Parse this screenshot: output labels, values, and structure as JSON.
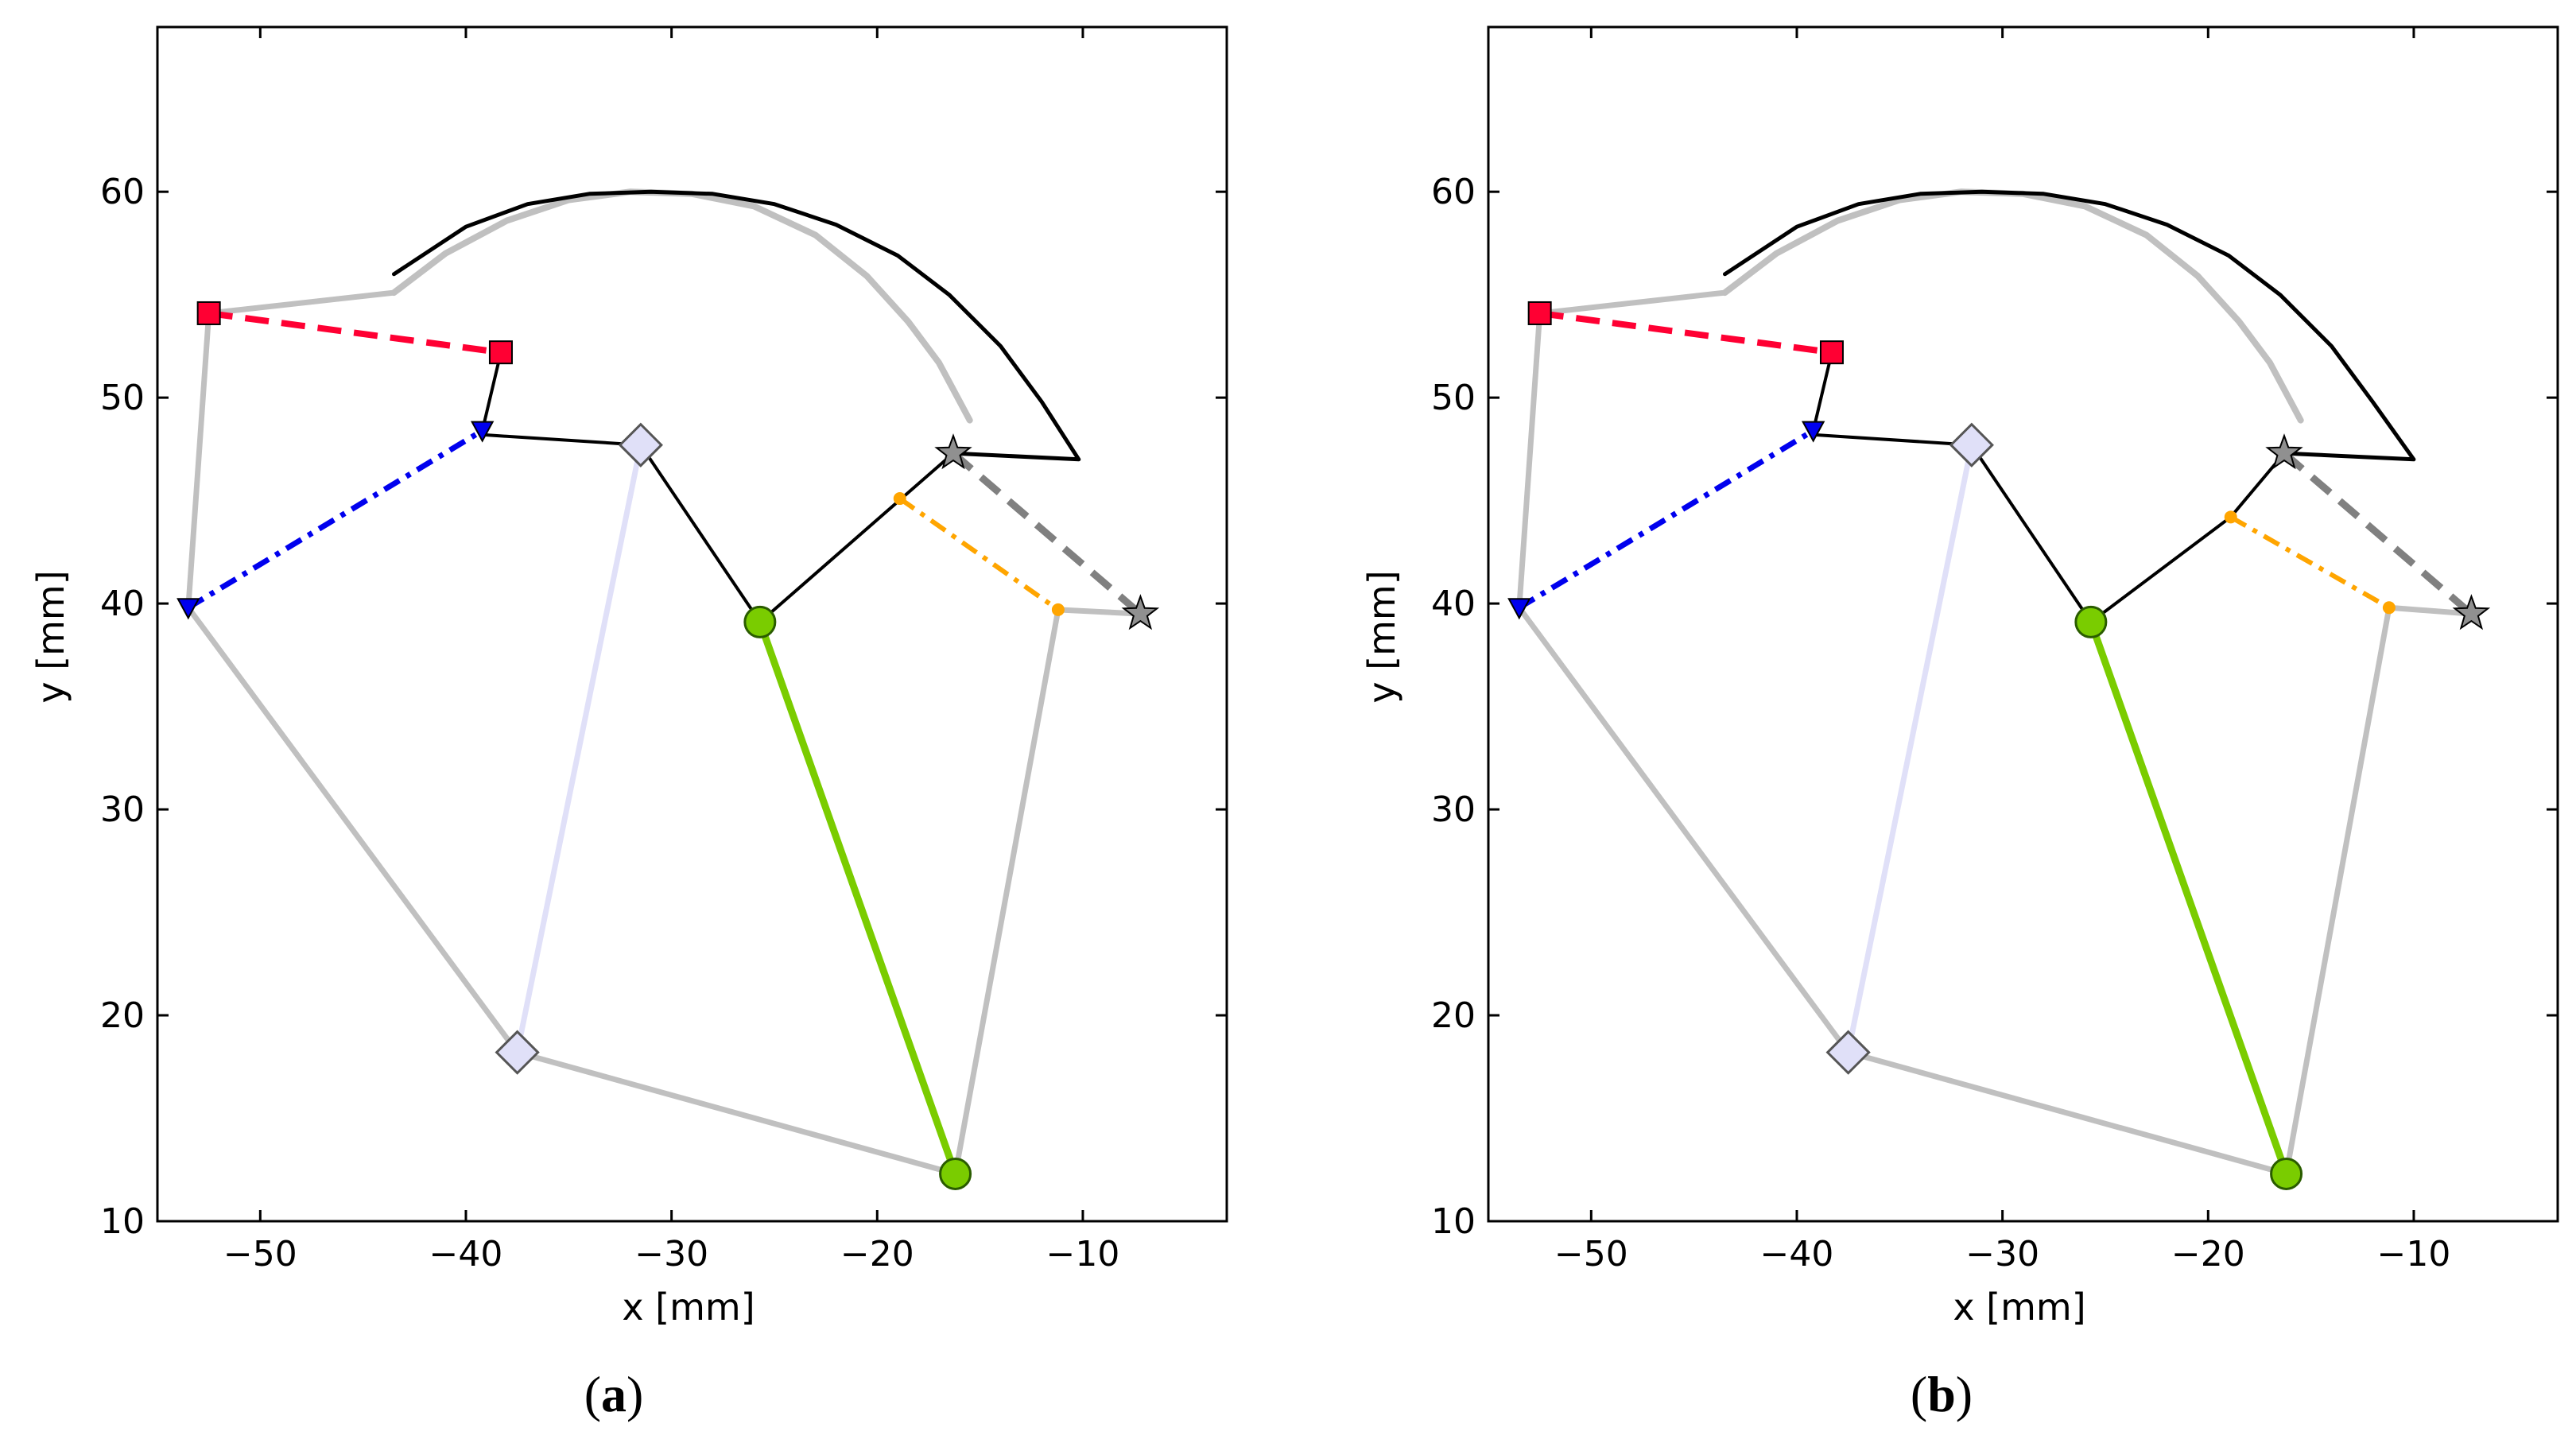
{
  "colors": {
    "frame": "#000000",
    "grey_link": "#c0c0c0",
    "lavender_link": "#e0e0f8",
    "green_link": "#7acc00",
    "black_link": "#000000",
    "red_dashed": "#ff0033",
    "blue_dashdot": "#0000ee",
    "orange_dashdot": "#ffa500",
    "grey_dashed": "#808080",
    "diamond_fill": "#e0e0f8",
    "star_fill": "#909090",
    "green_marker": "#7acc00"
  },
  "chart_data": [
    {
      "type": "line",
      "panel_label_open": "(",
      "panel_label_letter": "a",
      "panel_label_close": ")",
      "xlabel": "x [mm]",
      "ylabel": "y [mm]",
      "xlim": [
        -55,
        -3
      ],
      "ylim": [
        10,
        68
      ],
      "xticks": [
        -50,
        -40,
        -30,
        -20,
        -10
      ],
      "xtick_labels": [
        "−50",
        "−40",
        "−30",
        "−20",
        "−10"
      ],
      "yticks": [
        10,
        20,
        30,
        40,
        50,
        60
      ],
      "ytick_labels": [
        "10",
        "20",
        "30",
        "40",
        "50",
        "60"
      ],
      "series": [
        {
          "name": "grey-arc",
          "style": "solid",
          "color": "grey_link",
          "width": 8,
          "x": [
            -43.5,
            -41,
            -38,
            -35,
            -32,
            -29,
            -26,
            -23,
            -20.5,
            -18.5,
            -17,
            -15.5
          ],
          "y": [
            55.1,
            57,
            58.6,
            59.6,
            60,
            59.9,
            59.3,
            57.9,
            55.9,
            53.7,
            51.7,
            48.9
          ]
        },
        {
          "name": "black-arc",
          "style": "solid",
          "color": "black_link",
          "width": 5,
          "x": [
            -43.5,
            -40,
            -37,
            -34,
            -31,
            -28,
            -25,
            -22,
            -19,
            -16.5,
            -14,
            -12,
            -10.2,
            -16.3
          ],
          "y": [
            56,
            58.3,
            59.4,
            59.9,
            60,
            59.9,
            59.4,
            58.4,
            56.9,
            55,
            52.5,
            49.8,
            47,
            47.3
          ]
        },
        {
          "name": "grey-polyline-left",
          "style": "solid",
          "color": "grey_link",
          "width": 7,
          "x": [
            -43.5,
            -52.5,
            -53.5,
            -37.5,
            -16.2,
            -11.2,
            -7.2
          ],
          "y": [
            55.1,
            54.1,
            39.8,
            18.2,
            12.3,
            39.7,
            39.5
          ]
        },
        {
          "name": "lavender-link",
          "style": "solid",
          "color": "lavender_link",
          "width": 7,
          "x": [
            -31.5,
            -37.5
          ],
          "y": [
            47.7,
            18.2
          ]
        },
        {
          "name": "green-link",
          "style": "solid",
          "color": "green_link",
          "width": 9,
          "x": [
            -25.7,
            -16.2
          ],
          "y": [
            39.1,
            12.3
          ]
        },
        {
          "name": "black-linkage",
          "style": "solid",
          "color": "black_link",
          "width": 4,
          "x": [
            -38.3,
            -39.2,
            -39.2,
            -31.5,
            -25.7,
            -16.3
          ],
          "y": [
            52.2,
            48.4,
            48.2,
            47.7,
            39.1,
            47.3
          ]
        },
        {
          "name": "red-dashed",
          "style": "dashed",
          "color": "red_dashed",
          "width": 8,
          "x": [
            -52.5,
            -38.3
          ],
          "y": [
            54.1,
            52.2
          ]
        },
        {
          "name": "blue-dashdot",
          "style": "dashdot",
          "color": "blue_dashdot",
          "width": 7,
          "x": [
            -53.5,
            -39.2
          ],
          "y": [
            39.8,
            48.4
          ]
        },
        {
          "name": "orange-dashdot",
          "style": "dashdot",
          "color": "orange_dashdot",
          "width": 6,
          "x": [
            -18.9,
            -11.2
          ],
          "y": [
            45.1,
            39.7
          ]
        },
        {
          "name": "grey-dashed",
          "style": "dashed",
          "color": "grey_dashed",
          "width": 9,
          "x": [
            -16.3,
            -7.2
          ],
          "y": [
            47.3,
            39.5
          ]
        }
      ],
      "markers": [
        {
          "name": "red-square-1",
          "shape": "square",
          "color": "red_dashed",
          "x": -52.5,
          "y": 54.1
        },
        {
          "name": "red-square-2",
          "shape": "square",
          "color": "red_dashed",
          "x": -38.3,
          "y": 52.2
        },
        {
          "name": "blue-triangle-1",
          "shape": "triangle",
          "color": "blue_dashdot",
          "x": -39.2,
          "y": 48.4
        },
        {
          "name": "blue-triangle-2",
          "shape": "triangle",
          "color": "blue_dashdot",
          "x": -53.5,
          "y": 39.8
        },
        {
          "name": "diamond-top",
          "shape": "diamond",
          "color": "diamond_fill",
          "x": -31.5,
          "y": 47.7
        },
        {
          "name": "diamond-bottom",
          "shape": "diamond",
          "color": "diamond_fill",
          "x": -37.5,
          "y": 18.2
        },
        {
          "name": "green-circle-top",
          "shape": "circle",
          "color": "green_marker",
          "x": -25.7,
          "y": 39.1
        },
        {
          "name": "green-circle-bottom",
          "shape": "circle",
          "color": "green_marker",
          "x": -16.2,
          "y": 12.3
        },
        {
          "name": "orange-dot-1",
          "shape": "dot",
          "color": "orange_dashdot",
          "x": -18.9,
          "y": 45.1
        },
        {
          "name": "orange-dot-2",
          "shape": "dot",
          "color": "orange_dashdot",
          "x": -11.2,
          "y": 39.7
        },
        {
          "name": "star-1",
          "shape": "star",
          "color": "star_fill",
          "x": -16.3,
          "y": 47.3
        },
        {
          "name": "star-2",
          "shape": "star",
          "color": "star_fill",
          "x": -7.2,
          "y": 39.5
        }
      ]
    },
    {
      "type": "line",
      "panel_label_open": "(",
      "panel_label_letter": "b",
      "panel_label_close": ")",
      "xlabel": "x [mm]",
      "ylabel": "y [mm]",
      "xlim": [
        -55,
        -3
      ],
      "ylim": [
        10,
        68
      ],
      "xticks": [
        -50,
        -40,
        -30,
        -20,
        -10
      ],
      "xtick_labels": [
        "−50",
        "−40",
        "−30",
        "−20",
        "−10"
      ],
      "yticks": [
        10,
        20,
        30,
        40,
        50,
        60
      ],
      "ytick_labels": [
        "10",
        "20",
        "30",
        "40",
        "50",
        "60"
      ],
      "series": [
        {
          "name": "grey-arc",
          "style": "solid",
          "color": "grey_link",
          "width": 8,
          "x": [
            -43.5,
            -41,
            -38,
            -35,
            -32,
            -29,
            -26,
            -23,
            -20.5,
            -18.5,
            -17,
            -15.5
          ],
          "y": [
            55.1,
            57,
            58.6,
            59.6,
            60,
            59.9,
            59.3,
            57.9,
            55.9,
            53.7,
            51.7,
            48.9
          ]
        },
        {
          "name": "black-arc",
          "style": "solid",
          "color": "black_link",
          "width": 5,
          "x": [
            -43.5,
            -40,
            -37,
            -34,
            -31,
            -28,
            -25,
            -22,
            -19,
            -16.5,
            -14,
            -12,
            -10,
            -16.3
          ],
          "y": [
            56,
            58.3,
            59.4,
            59.9,
            60,
            59.9,
            59.4,
            58.4,
            56.9,
            55,
            52.5,
            49.8,
            47,
            47.3
          ]
        },
        {
          "name": "grey-polyline-left",
          "style": "solid",
          "color": "grey_link",
          "width": 7,
          "x": [
            -43.5,
            -52.5,
            -53.5,
            -37.5,
            -16.2,
            -11.2,
            -7.2
          ],
          "y": [
            55.1,
            54.1,
            39.8,
            18.2,
            12.3,
            39.8,
            39.5
          ]
        },
        {
          "name": "lavender-link",
          "style": "solid",
          "color": "lavender_link",
          "width": 7,
          "x": [
            -31.5,
            -37.5
          ],
          "y": [
            47.7,
            18.2
          ]
        },
        {
          "name": "green-link",
          "style": "solid",
          "color": "green_link",
          "width": 9,
          "x": [
            -25.7,
            -16.2
          ],
          "y": [
            39.1,
            12.3
          ]
        },
        {
          "name": "black-linkage",
          "style": "solid",
          "color": "black_link",
          "width": 4,
          "x": [
            -38.3,
            -39.2,
            -39.2,
            -31.5,
            -25.7,
            -18.9,
            -16.3
          ],
          "y": [
            52.2,
            48.4,
            48.2,
            47.7,
            39.1,
            44.2,
            47.3
          ]
        },
        {
          "name": "red-dashed",
          "style": "dashed",
          "color": "red_dashed",
          "width": 8,
          "x": [
            -52.5,
            -38.3
          ],
          "y": [
            54.1,
            52.2
          ]
        },
        {
          "name": "blue-dashdot",
          "style": "dashdot",
          "color": "blue_dashdot",
          "width": 7,
          "x": [
            -53.5,
            -39.2
          ],
          "y": [
            39.8,
            48.4
          ]
        },
        {
          "name": "orange-dashdot",
          "style": "dashdot",
          "color": "orange_dashdot",
          "width": 6,
          "x": [
            -18.9,
            -11.2
          ],
          "y": [
            44.2,
            39.8
          ]
        },
        {
          "name": "grey-dashed",
          "style": "dashed",
          "color": "grey_dashed",
          "width": 9,
          "x": [
            -16.3,
            -7.2
          ],
          "y": [
            47.3,
            39.5
          ]
        }
      ],
      "markers": [
        {
          "name": "red-square-1",
          "shape": "square",
          "color": "red_dashed",
          "x": -52.5,
          "y": 54.1
        },
        {
          "name": "red-square-2",
          "shape": "square",
          "color": "red_dashed",
          "x": -38.3,
          "y": 52.2
        },
        {
          "name": "blue-triangle-1",
          "shape": "triangle",
          "color": "blue_dashdot",
          "x": -39.2,
          "y": 48.4
        },
        {
          "name": "blue-triangle-2",
          "shape": "triangle",
          "color": "blue_dashdot",
          "x": -53.5,
          "y": 39.8
        },
        {
          "name": "diamond-top",
          "shape": "diamond",
          "color": "diamond_fill",
          "x": -31.5,
          "y": 47.7
        },
        {
          "name": "diamond-bottom",
          "shape": "diamond",
          "color": "diamond_fill",
          "x": -37.5,
          "y": 18.2
        },
        {
          "name": "green-circle-top",
          "shape": "circle",
          "color": "green_marker",
          "x": -25.7,
          "y": 39.1
        },
        {
          "name": "green-circle-bottom",
          "shape": "circle",
          "color": "green_marker",
          "x": -16.2,
          "y": 12.3
        },
        {
          "name": "orange-dot-1",
          "shape": "dot",
          "color": "orange_dashdot",
          "x": -18.9,
          "y": 44.2
        },
        {
          "name": "orange-dot-2",
          "shape": "dot",
          "color": "orange_dashdot",
          "x": -11.2,
          "y": 39.8
        },
        {
          "name": "star-1",
          "shape": "star",
          "color": "star_fill",
          "x": -16.3,
          "y": 47.3
        },
        {
          "name": "star-2",
          "shape": "star",
          "color": "star_fill",
          "x": -7.2,
          "y": 39.5
        }
      ]
    }
  ]
}
